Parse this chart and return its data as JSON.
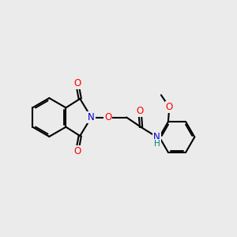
{
  "bg_color": "#ebebeb",
  "bond_color": "#000000",
  "bond_width": 1.5,
  "atom_colors": {
    "N": "#0000cc",
    "O": "#ff0000",
    "NH_N": "#0000cc",
    "NH_H": "#008080"
  },
  "font_size_atom": 8.5,
  "font_size_small": 7.5,
  "xlim": [
    0,
    10
  ],
  "ylim": [
    0,
    10
  ]
}
